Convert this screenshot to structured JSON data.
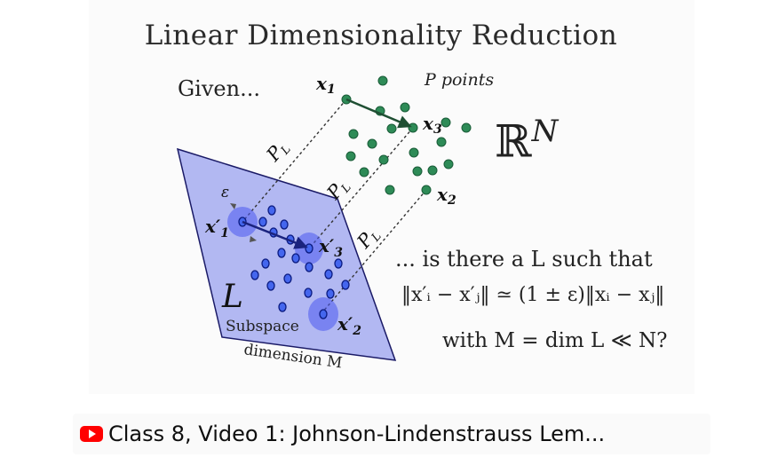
{
  "slide": {
    "title": "Linear Dimensionality Reduction",
    "given": "Given...",
    "p_points": "P points",
    "space_symbol": "ℝ",
    "space_exp": "N",
    "question_line": "... is there a L such that",
    "inequality": "‖x′ᵢ − x′ⱼ‖ ≃ (1 ± ε)‖xᵢ − xⱼ‖",
    "condition": "with M = dim L ≪ N?",
    "x1": "x",
    "x1_sub": "1",
    "x2": "x",
    "x2_sub": "2",
    "x3": "x",
    "x3_sub": "3",
    "x1p": "x′",
    "x1p_sub": "1",
    "x2p": "x′",
    "x2p_sub": "2",
    "x3p": "x′",
    "x3p_sub": "3",
    "epsilon": "ε",
    "proj": "P",
    "proj_sub": "L",
    "subspace_letter": "L",
    "subspace_label": "Subspace",
    "dimension_label": "dimension M"
  },
  "video": {
    "title": "Class 8, Video 1: Johnson-Lindenstrauss Lem..."
  },
  "colors": {
    "green_point": "#2e8b57",
    "plane_fill": "#b2b8f2",
    "blue_point": "#1f3fd0",
    "youtube_red": "#ff0000"
  },
  "icons": [
    "youtube-logo-icon"
  ]
}
